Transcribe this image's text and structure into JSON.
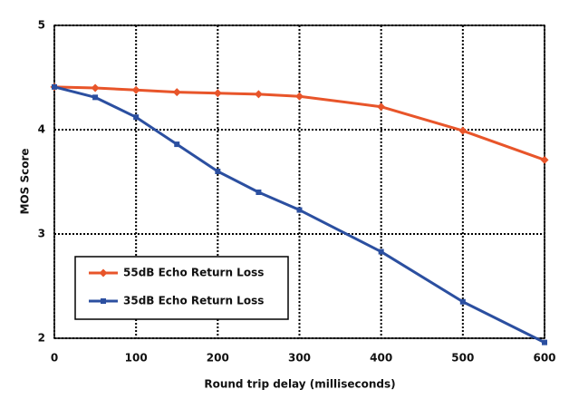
{
  "chart_data": {
    "type": "line",
    "x_label": "Round trip delay (milliseconds)",
    "y_label": "MOS Score",
    "x": [
      0,
      50,
      100,
      150,
      200,
      250,
      300,
      400,
      500,
      600
    ],
    "series": [
      {
        "name": "55dB Echo Return Loss",
        "color": "#e8552a",
        "marker": "diamond",
        "values": [
          4.41,
          4.4,
          4.38,
          4.36,
          4.35,
          4.34,
          4.32,
          4.22,
          3.99,
          3.71
        ]
      },
      {
        "name": "35dB Echo Return Loss",
        "color": "#2b4fa0",
        "marker": "square",
        "values": [
          4.41,
          4.31,
          4.12,
          3.86,
          3.6,
          3.4,
          3.23,
          2.83,
          2.35,
          1.96
        ]
      }
    ],
    "xlim": [
      0,
      600
    ],
    "xticks": [
      0,
      100,
      200,
      300,
      400,
      500,
      600
    ],
    "ylim": [
      2,
      5
    ],
    "yticks": [
      2,
      3,
      4,
      5
    ],
    "grid": true,
    "legend": "lower-left"
  }
}
